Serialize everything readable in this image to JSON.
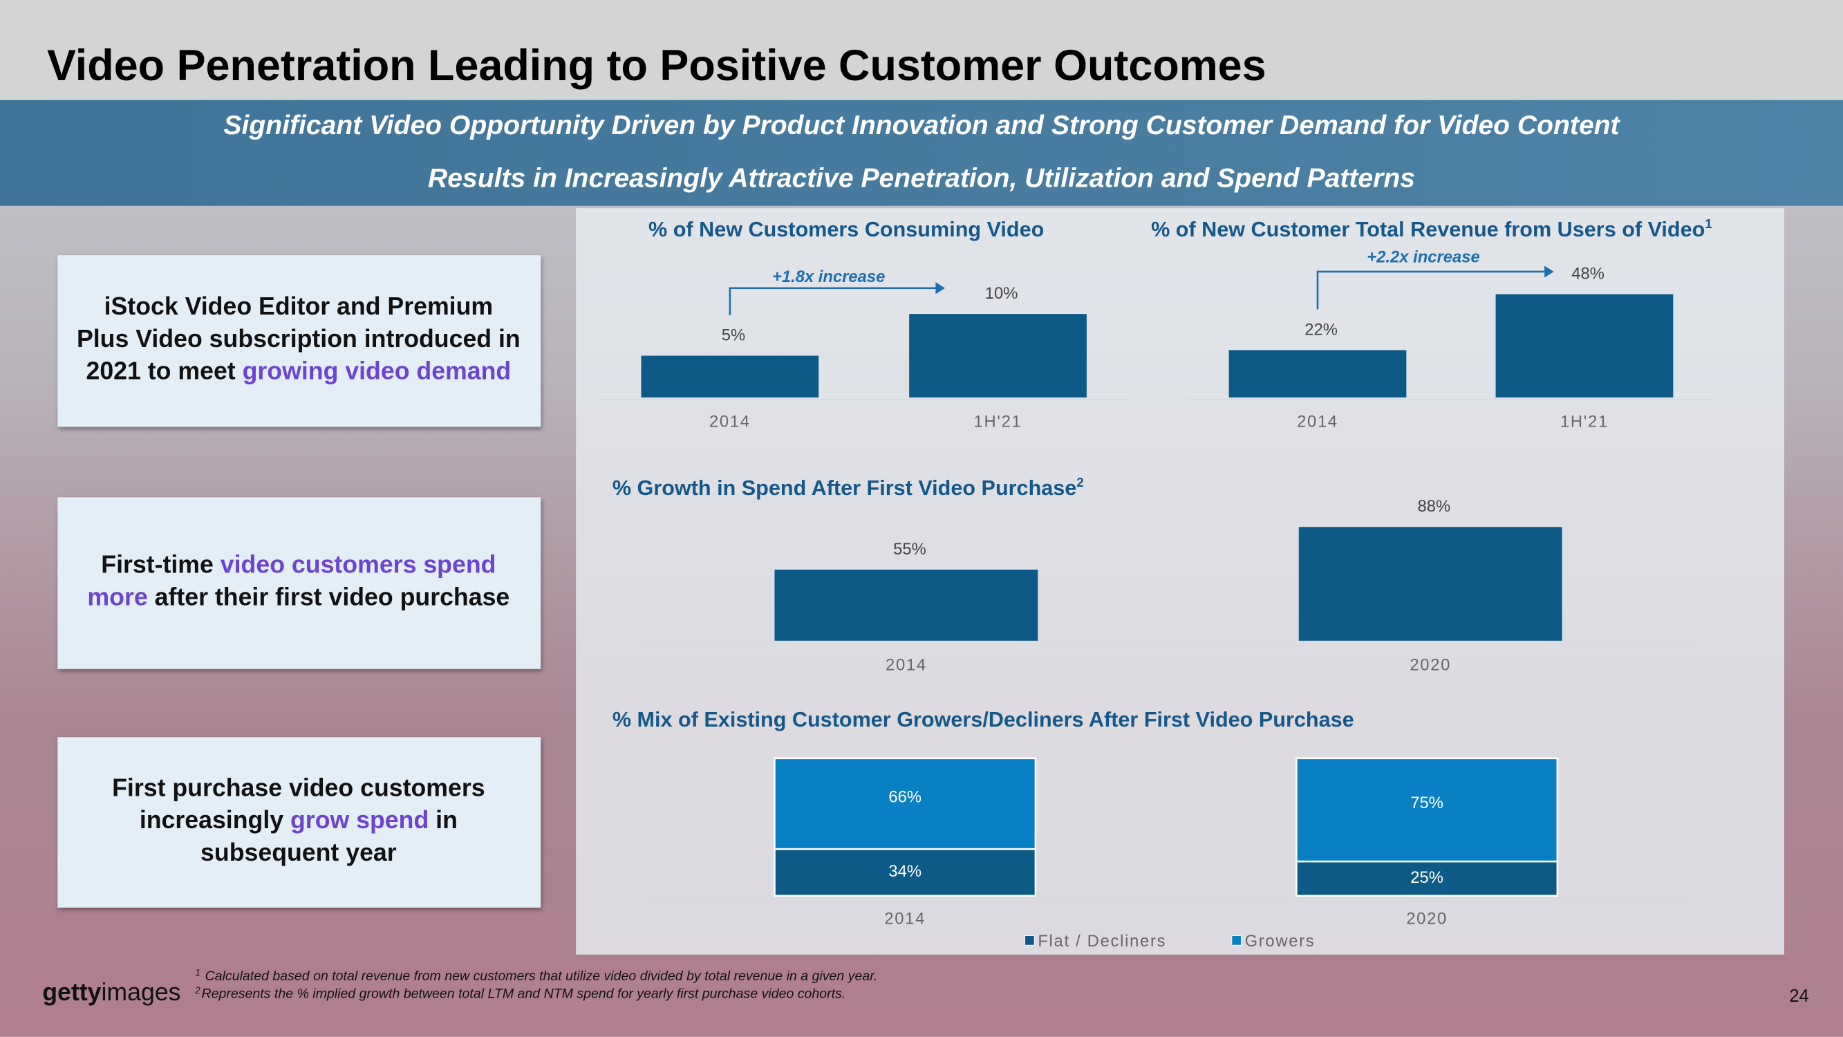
{
  "slide": {
    "title": "Video Penetration Leading to Positive Customer Outcomes",
    "subtitle": [
      "Significant Video Opportunity Driven by Product Innovation and Strong Customer Demand for Video Content",
      "Results in Increasingly Attractive Penetration, Utilization and Spend Patterns"
    ],
    "boxes": [
      {
        "lines": [
          [
            {
              "text": "iStock Video Editor and Premium"
            }
          ],
          [
            {
              "text": "Plus Video subscription introduced in"
            }
          ],
          [
            {
              "text": "2021 to meet "
            },
            {
              "text": "growing video demand",
              "highlight": true
            }
          ]
        ]
      },
      {
        "lines": [
          [
            {
              "text": "First-time "
            },
            {
              "text": "video customers spend",
              "highlight": true
            }
          ],
          [
            {
              "text": "more",
              "highlight": true
            },
            {
              "text": " after their first video purchase"
            }
          ]
        ]
      },
      {
        "lines": [
          [
            {
              "text": "First purchase video customers"
            }
          ],
          [
            {
              "text": "increasingly "
            },
            {
              "text": "grow spend",
              "highlight": true
            },
            {
              "text": " in"
            }
          ],
          [
            {
              "text": "subsequent year"
            }
          ]
        ]
      }
    ],
    "footnotes": [
      {
        "mark": "1",
        "text": "Calculated based on total revenue from new customers that utilize video divided by total revenue in a given year."
      },
      {
        "mark": "2",
        "text": "Represents the % implied growth between total LTM and NTM spend for yearly first purchase video cohorts."
      }
    ],
    "logo": [
      "getty",
      "images"
    ],
    "page": "24"
  },
  "chart_data": [
    {
      "type": "bar",
      "title": "% of New Customers Consuming Video",
      "annotation": "+1.8x increase",
      "categories": [
        "2014",
        "1H'21"
      ],
      "values": [
        5,
        10
      ],
      "value_labels": [
        "5%",
        "10%"
      ],
      "color": "#0e5a86"
    },
    {
      "type": "bar",
      "title": "% of New Customer Total Revenue from Users of Video",
      "title_note": "1",
      "annotation": "+2.2x increase",
      "categories": [
        "2014",
        "1H'21"
      ],
      "values": [
        22,
        48
      ],
      "value_labels": [
        "22%",
        "48%"
      ],
      "color": "#0e5a86"
    },
    {
      "type": "bar",
      "title": "% Growth in Spend After First Video Purchase",
      "title_note": "2",
      "categories": [
        "2014",
        "2020"
      ],
      "values": [
        55,
        88
      ],
      "value_labels": [
        "55%",
        "88%"
      ],
      "color": "#0e5a86"
    },
    {
      "type": "stacked-bar",
      "title": "% Mix of Existing Customer Growers/Decliners After First Video Purchase",
      "categories": [
        "2014",
        "2020"
      ],
      "series": [
        {
          "name": "Flat / Decliners",
          "color": "#0e5a86",
          "values": [
            34,
            25
          ],
          "value_labels": [
            "34%",
            "25%"
          ]
        },
        {
          "name": "Growers",
          "color": "#0a80c4",
          "values": [
            66,
            75
          ],
          "value_labels": [
            "66%",
            "75%"
          ]
        }
      ]
    }
  ]
}
